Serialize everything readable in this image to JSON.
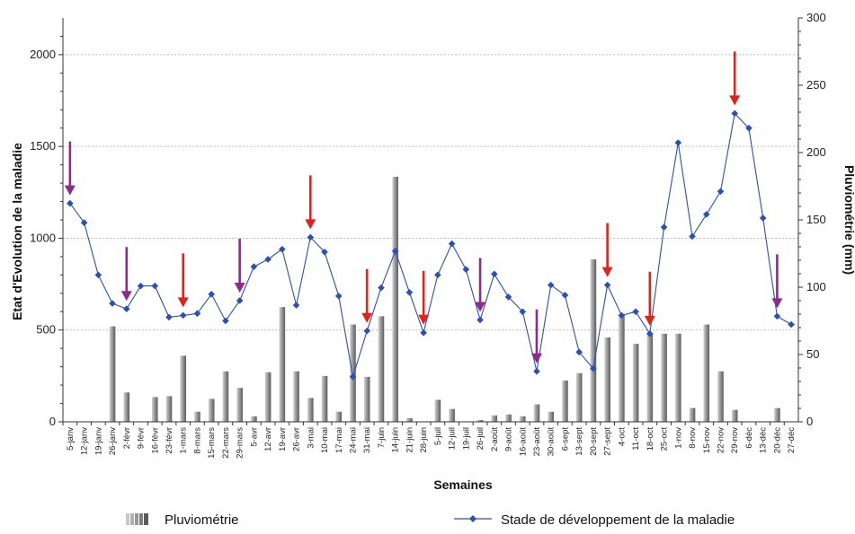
{
  "chart_data": {
    "type": "bar+line",
    "xlabel": "Semaines",
    "ylabel_left": "Etat d'Evolution de la maladie",
    "ylabel_right": "Pluviométrie (mm)",
    "ylim_left": [
      0,
      2200
    ],
    "yticks_left": [
      0,
      500,
      1000,
      1500,
      2000
    ],
    "ylim_right": [
      0,
      300
    ],
    "yticks_right": [
      0,
      50,
      100,
      150,
      200,
      250,
      300
    ],
    "grid": "horizontal dashed at left-axis major ticks",
    "legend_position": "bottom",
    "categories": [
      "5-janv",
      "12-janv",
      "19-janv",
      "26-janv",
      "2-févr",
      "9-févr",
      "16-févr",
      "23-févr",
      "1-mars",
      "8-mars",
      "15-mars",
      "22-mars",
      "29-mars",
      "5-avr",
      "12-avr",
      "19-avr",
      "26-avr",
      "3-mai",
      "10-mai",
      "17-mai",
      "24-mai",
      "31-mai",
      "7-juin",
      "14-juin",
      "21-juin",
      "28-juin",
      "5-juil",
      "12-juil",
      "19-juil",
      "26-juil",
      "2-août",
      "9-août",
      "16-août",
      "23-août",
      "30-août",
      "6-sept",
      "13-sept",
      "20-sept",
      "27-sept",
      "4-oct",
      "11-oct",
      "18-oct",
      "25-oct",
      "1-nov",
      "8-nov",
      "15-nov",
      "22-nov",
      "29-nov",
      "6-déc",
      "13-déc",
      "20-déc",
      "27-déc"
    ],
    "series": [
      {
        "name": "Pluviométrie",
        "type": "bar",
        "axis": "left",
        "color": "#7a7a7a",
        "values": [
          0,
          0,
          0,
          520,
          160,
          0,
          135,
          140,
          360,
          55,
          125,
          275,
          185,
          30,
          270,
          625,
          275,
          130,
          250,
          55,
          530,
          245,
          575,
          1335,
          20,
          0,
          120,
          70,
          0,
          10,
          35,
          40,
          30,
          95,
          55,
          225,
          265,
          885,
          460,
          580,
          425,
          480,
          480,
          480,
          75,
          530,
          275,
          65,
          0,
          0,
          75,
          0
        ]
      },
      {
        "name": "Stade de développement de la maladie",
        "type": "line",
        "axis": "left",
        "color": "#2b4fb8",
        "values": [
          1190,
          1085,
          800,
          645,
          615,
          740,
          740,
          570,
          580,
          590,
          695,
          550,
          660,
          845,
          885,
          940,
          635,
          1005,
          925,
          685,
          245,
          495,
          730,
          930,
          705,
          485,
          800,
          970,
          830,
          555,
          805,
          680,
          600,
          275,
          745,
          690,
          380,
          290,
          745,
          580,
          600,
          480,
          1060,
          1520,
          1010,
          1130,
          1255,
          1680,
          1600,
          1110,
          575,
          530
        ]
      }
    ],
    "annotations": {
      "purple_arrows": [
        "5-janv",
        "2-févr",
        "29-mars",
        "26-juil",
        "23-août",
        "20-déc"
      ],
      "red_arrows": [
        "1-mars",
        "3-mai",
        "31-mai",
        "28-juin",
        "27-sept",
        "18-oct",
        "29-nov"
      ],
      "purple_color": "#8e2a8a",
      "red_color": "#e2231a"
    }
  }
}
